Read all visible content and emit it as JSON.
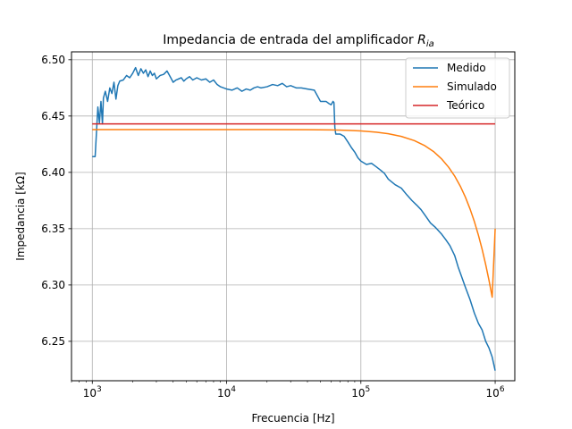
{
  "chart_data": {
    "type": "line",
    "title": "Impedancia de entrada del amplificador ",
    "title_math": "R",
    "title_math_sub": "ia",
    "xlabel": "Frecuencia [Hz]",
    "ylabel": "Impedancia [kΩ]",
    "xscale": "log",
    "xlim": [
      700,
      1400000
    ],
    "ylim": [
      6.215,
      6.507
    ],
    "x_ticks": [
      1000,
      10000,
      100000,
      1000000
    ],
    "x_tick_labels": [
      {
        "base": "10",
        "exp": "3"
      },
      {
        "base": "10",
        "exp": "4"
      },
      {
        "base": "10",
        "exp": "5"
      },
      {
        "base": "10",
        "exp": "6"
      }
    ],
    "y_ticks": [
      6.25,
      6.3,
      6.35,
      6.4,
      6.45,
      6.5
    ],
    "y_tick_labels": [
      "6.25",
      "6.30",
      "6.35",
      "6.40",
      "6.45",
      "6.50"
    ],
    "grid": true,
    "legend_position": "top-right",
    "series": [
      {
        "name": "Medido",
        "color": "#1f77b4",
        "x": [
          1000,
          1050,
          1100,
          1130,
          1160,
          1190,
          1210,
          1250,
          1300,
          1350,
          1400,
          1450,
          1500,
          1550,
          1600,
          1700,
          1800,
          1900,
          2000,
          2100,
          2200,
          2300,
          2400,
          2500,
          2600,
          2700,
          2800,
          2900,
          3000,
          3200,
          3400,
          3600,
          3800,
          4000,
          4200,
          4400,
          4600,
          4800,
          5000,
          5300,
          5600,
          6000,
          6500,
          7000,
          7500,
          8000,
          8500,
          9000,
          10000,
          11000,
          12000,
          13000,
          14000,
          15000,
          16000,
          17000,
          18000,
          20000,
          22000,
          24000,
          26000,
          28000,
          30000,
          33000,
          36000,
          40000,
          45000,
          50000,
          55000,
          58000,
          60000,
          62000,
          63000,
          64000,
          65000,
          70000,
          75000,
          80000,
          85000,
          90000,
          95000,
          100000,
          110000,
          120000,
          130000,
          140000,
          150000,
          160000,
          180000,
          200000,
          220000,
          240000,
          260000,
          280000,
          300000,
          330000,
          360000,
          400000,
          430000,
          460000,
          500000,
          530000,
          560000,
          600000,
          650000,
          700000,
          750000,
          800000,
          850000,
          900000,
          950000,
          1000000
        ],
        "y": [
          6.414,
          6.414,
          6.458,
          6.444,
          6.463,
          6.443,
          6.466,
          6.472,
          6.463,
          6.475,
          6.47,
          6.48,
          6.465,
          6.477,
          6.481,
          6.482,
          6.486,
          6.484,
          6.488,
          6.493,
          6.486,
          6.492,
          6.488,
          6.491,
          6.485,
          6.49,
          6.486,
          6.488,
          6.483,
          6.486,
          6.487,
          6.49,
          6.485,
          6.48,
          6.482,
          6.483,
          6.484,
          6.481,
          6.483,
          6.485,
          6.482,
          6.484,
          6.482,
          6.483,
          6.48,
          6.482,
          6.478,
          6.476,
          6.474,
          6.473,
          6.475,
          6.472,
          6.474,
          6.473,
          6.475,
          6.476,
          6.475,
          6.476,
          6.478,
          6.477,
          6.479,
          6.476,
          6.477,
          6.475,
          6.475,
          6.474,
          6.473,
          6.463,
          6.463,
          6.461,
          6.46,
          6.463,
          6.462,
          6.44,
          6.434,
          6.434,
          6.432,
          6.427,
          6.422,
          6.418,
          6.413,
          6.41,
          6.407,
          6.408,
          6.405,
          6.402,
          6.399,
          6.394,
          6.389,
          6.386,
          6.38,
          6.375,
          6.371,
          6.367,
          6.362,
          6.355,
          6.351,
          6.345,
          6.34,
          6.335,
          6.326,
          6.316,
          6.308,
          6.298,
          6.287,
          6.275,
          6.266,
          6.26,
          6.25,
          6.244,
          6.236,
          6.224
        ]
      },
      {
        "name": "Simulado",
        "color": "#ff7f0e",
        "x": [
          1000,
          2000,
          5000,
          10000,
          20000,
          40000,
          60000,
          80000,
          100000,
          130000,
          160000,
          200000,
          250000,
          300000,
          350000,
          400000,
          450000,
          500000,
          550000,
          600000,
          650000,
          700000,
          750000,
          800000,
          850000,
          900000,
          950000,
          1000000
        ],
        "y": [
          6.438,
          6.438,
          6.438,
          6.438,
          6.438,
          6.4379,
          6.4377,
          6.4373,
          6.4368,
          6.4357,
          6.4343,
          6.4319,
          6.4282,
          6.4236,
          6.4182,
          6.4118,
          6.4046,
          6.3966,
          6.3877,
          6.378,
          6.3675,
          6.3563,
          6.3443,
          6.3316,
          6.3181,
          6.304,
          6.2892,
          6.35
        ]
      },
      {
        "name": "Teórico",
        "color": "#d62728",
        "x": [
          1000,
          1000000
        ],
        "y": [
          6.443,
          6.443
        ]
      }
    ]
  }
}
